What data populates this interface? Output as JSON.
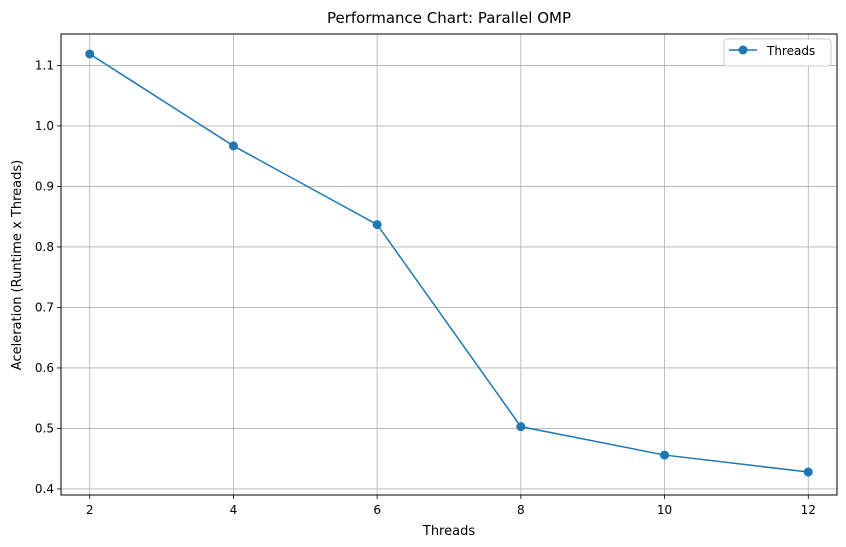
{
  "chart_data": {
    "type": "line",
    "title": "Performance Chart: Parallel OMP",
    "xlabel": "Threads",
    "ylabel": "Aceleration (Runtime x Threads)",
    "x": [
      2,
      4,
      6,
      8,
      10,
      12
    ],
    "xticks": [
      "2",
      "4",
      "6",
      "8",
      "10",
      "12"
    ],
    "yticks": [
      "0.4",
      "0.5",
      "0.6",
      "0.7",
      "0.8",
      "0.9",
      "1.0",
      "1.1"
    ],
    "xlim": [
      1.6,
      12.4
    ],
    "ylim": [
      0.39,
      1.152
    ],
    "grid": true,
    "legend_position": "top-right",
    "series": [
      {
        "name": "Threads",
        "color": "#1f77b4",
        "marker": "circle",
        "values": [
          1.119,
          0.967,
          0.837,
          0.503,
          0.456,
          0.428
        ]
      }
    ]
  }
}
